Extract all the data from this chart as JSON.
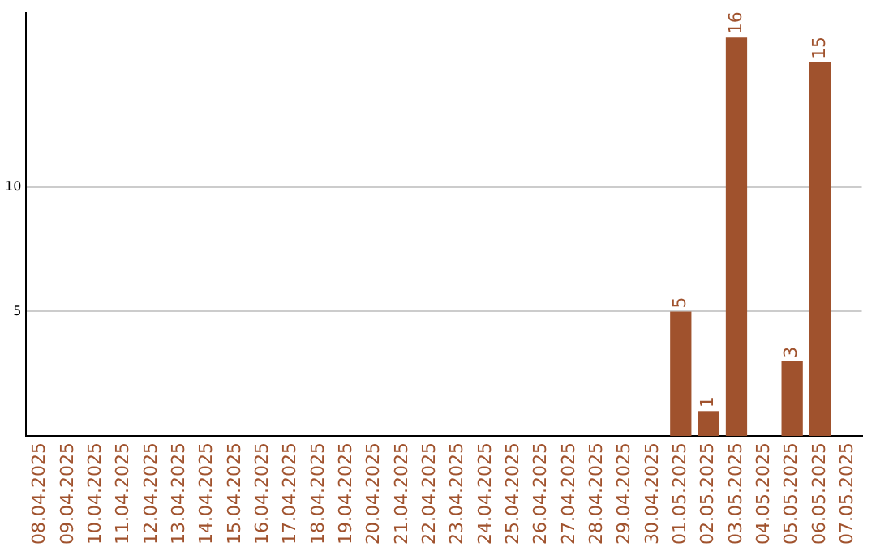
{
  "chart_data": {
    "type": "bar",
    "categories": [
      "08.04.2025",
      "09.04.2025",
      "10.04.2025",
      "11.04.2025",
      "12.04.2025",
      "13.04.2025",
      "14.04.2025",
      "15.04.2025",
      "16.04.2025",
      "17.04.2025",
      "18.04.2025",
      "19.04.2025",
      "20.04.2025",
      "21.04.2025",
      "22.04.2025",
      "23.04.2025",
      "24.04.2025",
      "25.04.2025",
      "26.04.2025",
      "27.04.2025",
      "28.04.2025",
      "29.04.2025",
      "30.04.2025",
      "01.05.2025",
      "02.05.2025",
      "03.05.2025",
      "04.05.2025",
      "05.05.2025",
      "06.05.2025",
      "07.05.2025"
    ],
    "values": [
      0,
      0,
      0,
      0,
      0,
      0,
      0,
      0,
      0,
      0,
      0,
      0,
      0,
      0,
      0,
      0,
      0,
      0,
      0,
      0,
      0,
      0,
      0,
      5,
      1,
      16,
      0,
      3,
      15,
      0
    ],
    "value_labels": [
      null,
      null,
      null,
      null,
      null,
      null,
      null,
      null,
      null,
      null,
      null,
      null,
      null,
      null,
      null,
      null,
      null,
      null,
      null,
      null,
      null,
      null,
      null,
      "5",
      "1",
      "16",
      null,
      "3",
      "15",
      null
    ],
    "color": "#a0522d",
    "ylim": [
      0,
      17
    ],
    "yticks": [
      5,
      10
    ],
    "grid": "y",
    "legend": false
  }
}
